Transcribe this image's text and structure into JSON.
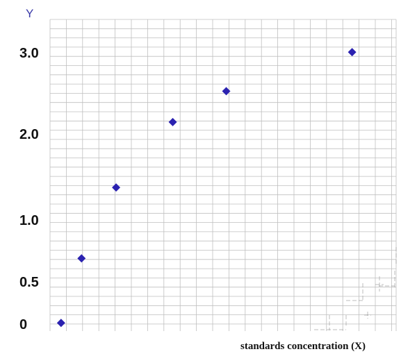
{
  "chart_data": {
    "type": "scatter",
    "title": "",
    "xlabel": "standards concentration (X)",
    "ylabel": "Y",
    "grid": true,
    "y_ticks": [
      {
        "value": 0,
        "label": "0"
      },
      {
        "value": 0.5,
        "label": "0.5"
      },
      {
        "value": 1.0,
        "label": "1.0"
      },
      {
        "value": 2.0,
        "label": "2.0"
      },
      {
        "value": 3.0,
        "label": "3.0"
      }
    ],
    "ylim": [
      0,
      3.43
    ],
    "xlim": [
      0,
      22
    ],
    "points": [
      {
        "x": 0.7,
        "y": 0.09
      },
      {
        "x": 2.0,
        "y": 0.8
      },
      {
        "x": 4.2,
        "y": 1.58
      },
      {
        "x": 7.8,
        "y": 2.3
      },
      {
        "x": 11.2,
        "y": 2.64
      },
      {
        "x": 19.2,
        "y": 3.07
      }
    ],
    "marker": "diamond",
    "marker_color": "#2b22b0",
    "grid_color": "#bfbfbf"
  }
}
